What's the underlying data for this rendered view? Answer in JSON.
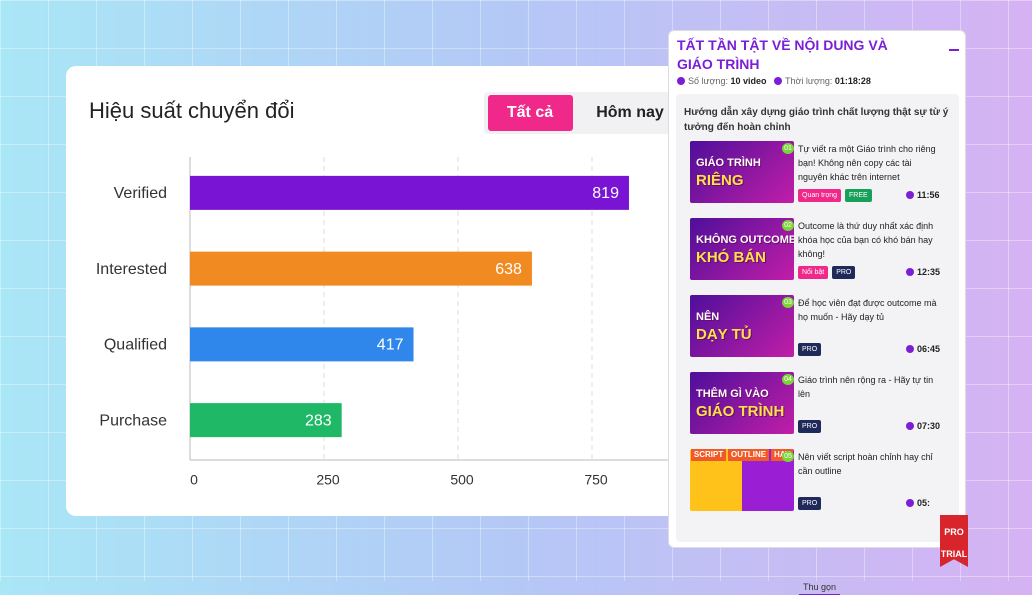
{
  "chart_data": {
    "type": "bar",
    "orientation": "horizontal",
    "title": "Hiệu suất chuyển đổi",
    "tabs": [
      "Tất cả",
      "Hôm nay"
    ],
    "categories": [
      "Verified",
      "Interested",
      "Qualified",
      "Purchase"
    ],
    "values": [
      819,
      638,
      417,
      283
    ],
    "colors": [
      "#7a14d4",
      "#f28a22",
      "#2f86eb",
      "#1fb866"
    ],
    "xlim": [
      0,
      1000
    ],
    "xticks": [
      0,
      250,
      500,
      750
    ],
    "grid": true
  },
  "panel": {
    "title": "TẤT TẦN TẬT VỀ NỘI DUNG VÀ GIÁO TRÌNH",
    "count_label": "Số lượng:",
    "count": "10 video",
    "duration_label": "Thời lượng:",
    "duration": "01:18:28",
    "section_title": "Hướng dẫn xây dựng giáo trình chất lượng thật sự từ ý tưởng đến hoàn chỉnh",
    "items": [
      {
        "thumb": [
          "GIÁO TRÌNH",
          "RIÊNG"
        ],
        "number": "01",
        "title": "Tự viết ra một Giáo trình cho riêng bạn! Không nên copy các tài nguyên khác trên internet",
        "tags": [
          {
            "text": "Quan trọng",
            "color": "#f0288a"
          },
          {
            "text": "FREE",
            "color": "#16a05a"
          }
        ],
        "time": "11:56"
      },
      {
        "thumb": [
          "KHÔNG OUTCOME",
          "KHÓ BÁN"
        ],
        "number": "02",
        "title": "Outcome là thứ duy nhất xác định khóa học của bạn có khó bán hay không!",
        "tags": [
          {
            "text": "Nổi bật",
            "color": "#f0288a"
          },
          {
            "text": "PRO",
            "color": "#1f2a5a"
          }
        ],
        "time": "12:35"
      },
      {
        "thumb": [
          "NÊN",
          "DẠY TỦ"
        ],
        "number": "03",
        "title": "Để học viên đạt được outcome mà họ muốn - Hãy dạy tủ",
        "tags": [
          {
            "text": "PRO",
            "color": "#1f2a5a"
          }
        ],
        "time": "06:45"
      },
      {
        "thumb": [
          "THÊM GÌ VÀO",
          "GIÁO TRÌNH"
        ],
        "number": "04",
        "title": "Giáo trình nên rộng ra - Hãy tự tin lên",
        "tags": [
          {
            "text": "PRO",
            "color": "#1f2a5a"
          }
        ],
        "time": "07:30"
      },
      {
        "thumb": [
          "SCRIPT",
          "OUTLINE",
          "HAY"
        ],
        "number": "05",
        "title": "Nên viết script hoàn chỉnh hay chỉ cần outline",
        "tags": [
          {
            "text": "PRO",
            "color": "#1f2a5a"
          }
        ],
        "time": "05:"
      }
    ],
    "badge": [
      "PRO",
      "TRIAL"
    ],
    "collapse": "Thu gọn"
  }
}
